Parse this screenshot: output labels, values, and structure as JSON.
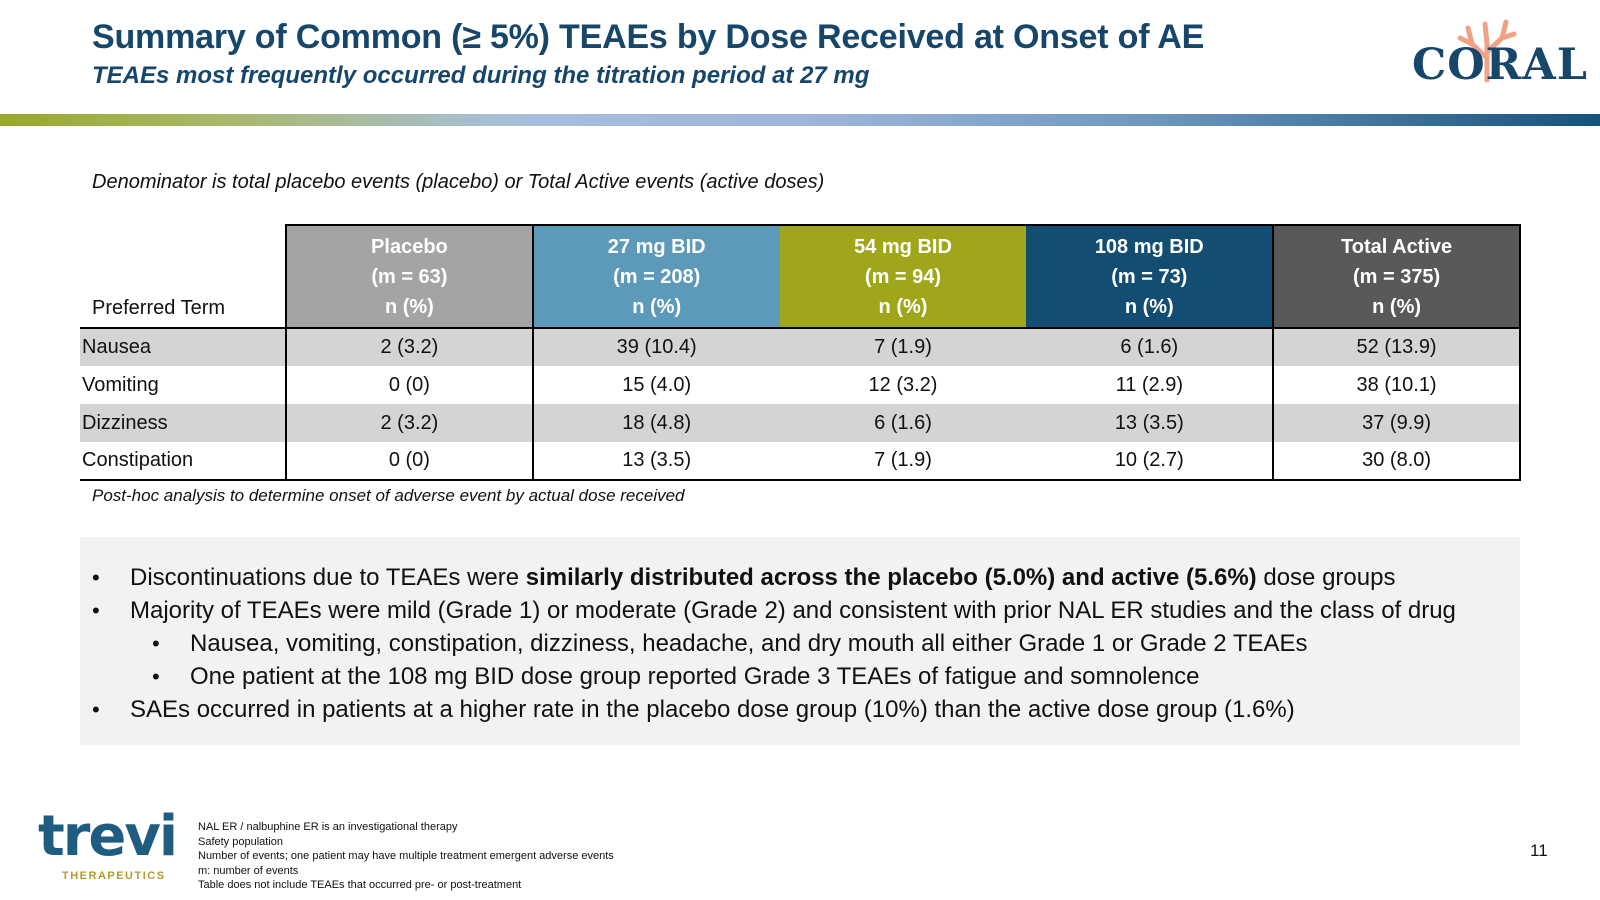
{
  "header": {
    "title": "Summary of Common (≥ 5%) TEAEs by Dose Received at Onset of AE",
    "subtitle": "TEAEs most frequently occurred during the titration period at 27 mg"
  },
  "brand": {
    "coral_logo_text": "CORAL",
    "trevi_logo_text": "trevi",
    "trevi_logo_sub": "THERAPEUTICS"
  },
  "denominator_note": "Denominator is total placebo events (placebo) or Total Active events (active doses)",
  "table": {
    "row_header": "Preferred Term",
    "columns": [
      {
        "name": "Placebo",
        "m": "(m = 63)",
        "unit": "n (%)",
        "color": "#a4a4a4"
      },
      {
        "name": "27 mg BID",
        "m": "(m = 208)",
        "unit": "n (%)",
        "color": "#5d9ab9"
      },
      {
        "name": "54 mg BID",
        "m": "(m = 94)",
        "unit": "n (%)",
        "color": "#a0a619"
      },
      {
        "name": "108 mg BID",
        "m": "(m = 73)",
        "unit": "n (%)",
        "color": "#134e72"
      },
      {
        "name": "Total Active",
        "m": "(m = 375)",
        "unit": "n (%)",
        "color": "#595959"
      }
    ],
    "rows": [
      {
        "term": "Nausea",
        "values": [
          "2 (3.2)",
          "39 (10.4)",
          "7 (1.9)",
          "6 (1.6)",
          "52 (13.9)"
        ]
      },
      {
        "term": "Vomiting",
        "values": [
          "0 (0)",
          "15 (4.0)",
          "12 (3.2)",
          "11 (2.9)",
          "38 (10.1)"
        ]
      },
      {
        "term": "Dizziness",
        "values": [
          "2 (3.2)",
          "18 (4.8)",
          "6 (1.6)",
          "13 (3.5)",
          "37 (9.9)"
        ]
      },
      {
        "term": "Constipation",
        "values": [
          "0 (0)",
          "13 (3.5)",
          "7 (1.9)",
          "10 (2.7)",
          "30 (8.0)"
        ]
      }
    ]
  },
  "posthoc_note": "Post-hoc analysis to determine onset of adverse event by actual dose received",
  "bullets": {
    "b1_pre": "Discontinuations due to TEAEs were ",
    "b1_bold": "similarly distributed across the placebo (5.0%) and active (5.6%)",
    "b1_post": " dose groups",
    "b2": "Majority of TEAEs were mild (Grade 1) or moderate (Grade 2) and consistent with prior NAL ER studies and the class of drug",
    "b2_sub1": "Nausea, vomiting, constipation, dizziness, headache, and dry mouth all either Grade 1 or Grade 2 TEAEs",
    "b2_sub2": "One patient at the 108 mg BID dose group reported Grade 3 TEAEs of fatigue and somnolence",
    "b3": "SAEs occurred in patients at a higher rate in the placebo dose group (10%) than the active dose group (1.6%)"
  },
  "footnotes": [
    "NAL ER / nalbuphine ER is an investigational therapy",
    "Safety population",
    "Number of events; one patient may have multiple treatment emergent adverse events",
    "m: number of events",
    "Table does not include TEAEs that occurred pre- or post-treatment"
  ],
  "page_number": "11"
}
